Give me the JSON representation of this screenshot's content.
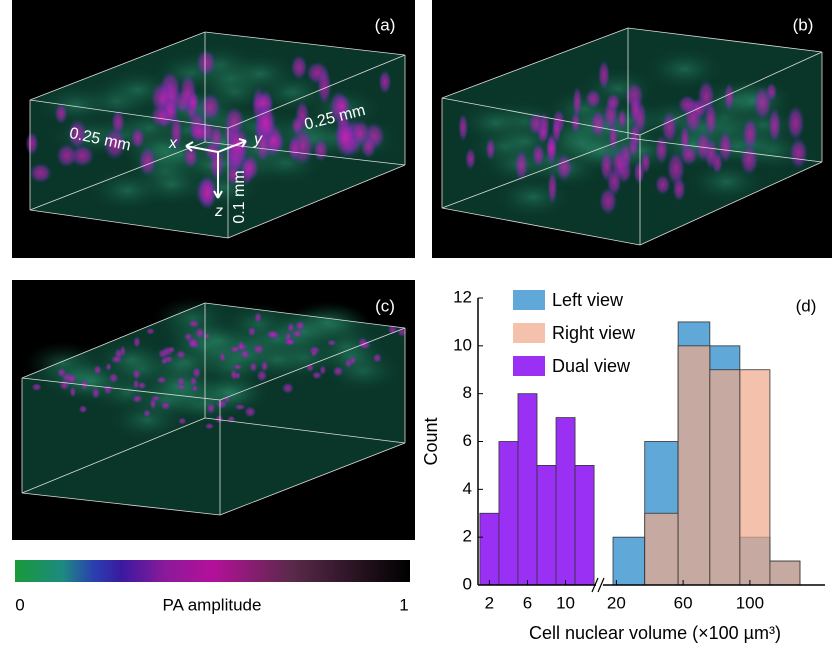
{
  "panels": [
    {
      "label": "(a)",
      "annotations": [
        "0.25 mm",
        "0.25 mm",
        "x",
        "y",
        "z",
        "0.1 mm"
      ]
    },
    {
      "label": "(b)"
    },
    {
      "label": "(c)"
    }
  ],
  "colorbar": {
    "min_label": "0",
    "title": "PA amplitude",
    "max_label": "1"
  },
  "chart_data": {
    "type": "histogram",
    "panel_label": "(d)",
    "x_label": "Cell nuclear volume (×100 µm³)",
    "y_label": "Count",
    "xlim": [
      0.8,
      13.2
    ],
    "xticks": [
      2,
      6,
      10
    ],
    "x2lim": [
      12,
      145
    ],
    "x2ticks": [
      20,
      60,
      100
    ],
    "ylim": [
      0,
      12
    ],
    "yticks": [
      0,
      2,
      4,
      6,
      8,
      10,
      12
    ],
    "legend": "upper left",
    "series": [
      {
        "name": "Left view",
        "color": "#5fa8d8",
        "axis": "x2",
        "bins": [
          18,
          37,
          57,
          76,
          94,
          112,
          130
        ],
        "values": [
          2,
          6,
          11,
          10,
          2,
          1
        ]
      },
      {
        "name": "Right view",
        "color": "#efa98c",
        "axis": "x2",
        "bins": [
          18,
          37,
          57,
          76,
          94,
          112,
          130
        ],
        "values": [
          0,
          3,
          10,
          9,
          9,
          1
        ]
      },
      {
        "name": "Dual view",
        "color": "#9b30f5",
        "bins": [
          1,
          3,
          5,
          7,
          9,
          11,
          13
        ],
        "values": [
          3,
          6,
          8,
          5,
          7,
          5
        ]
      }
    ]
  }
}
